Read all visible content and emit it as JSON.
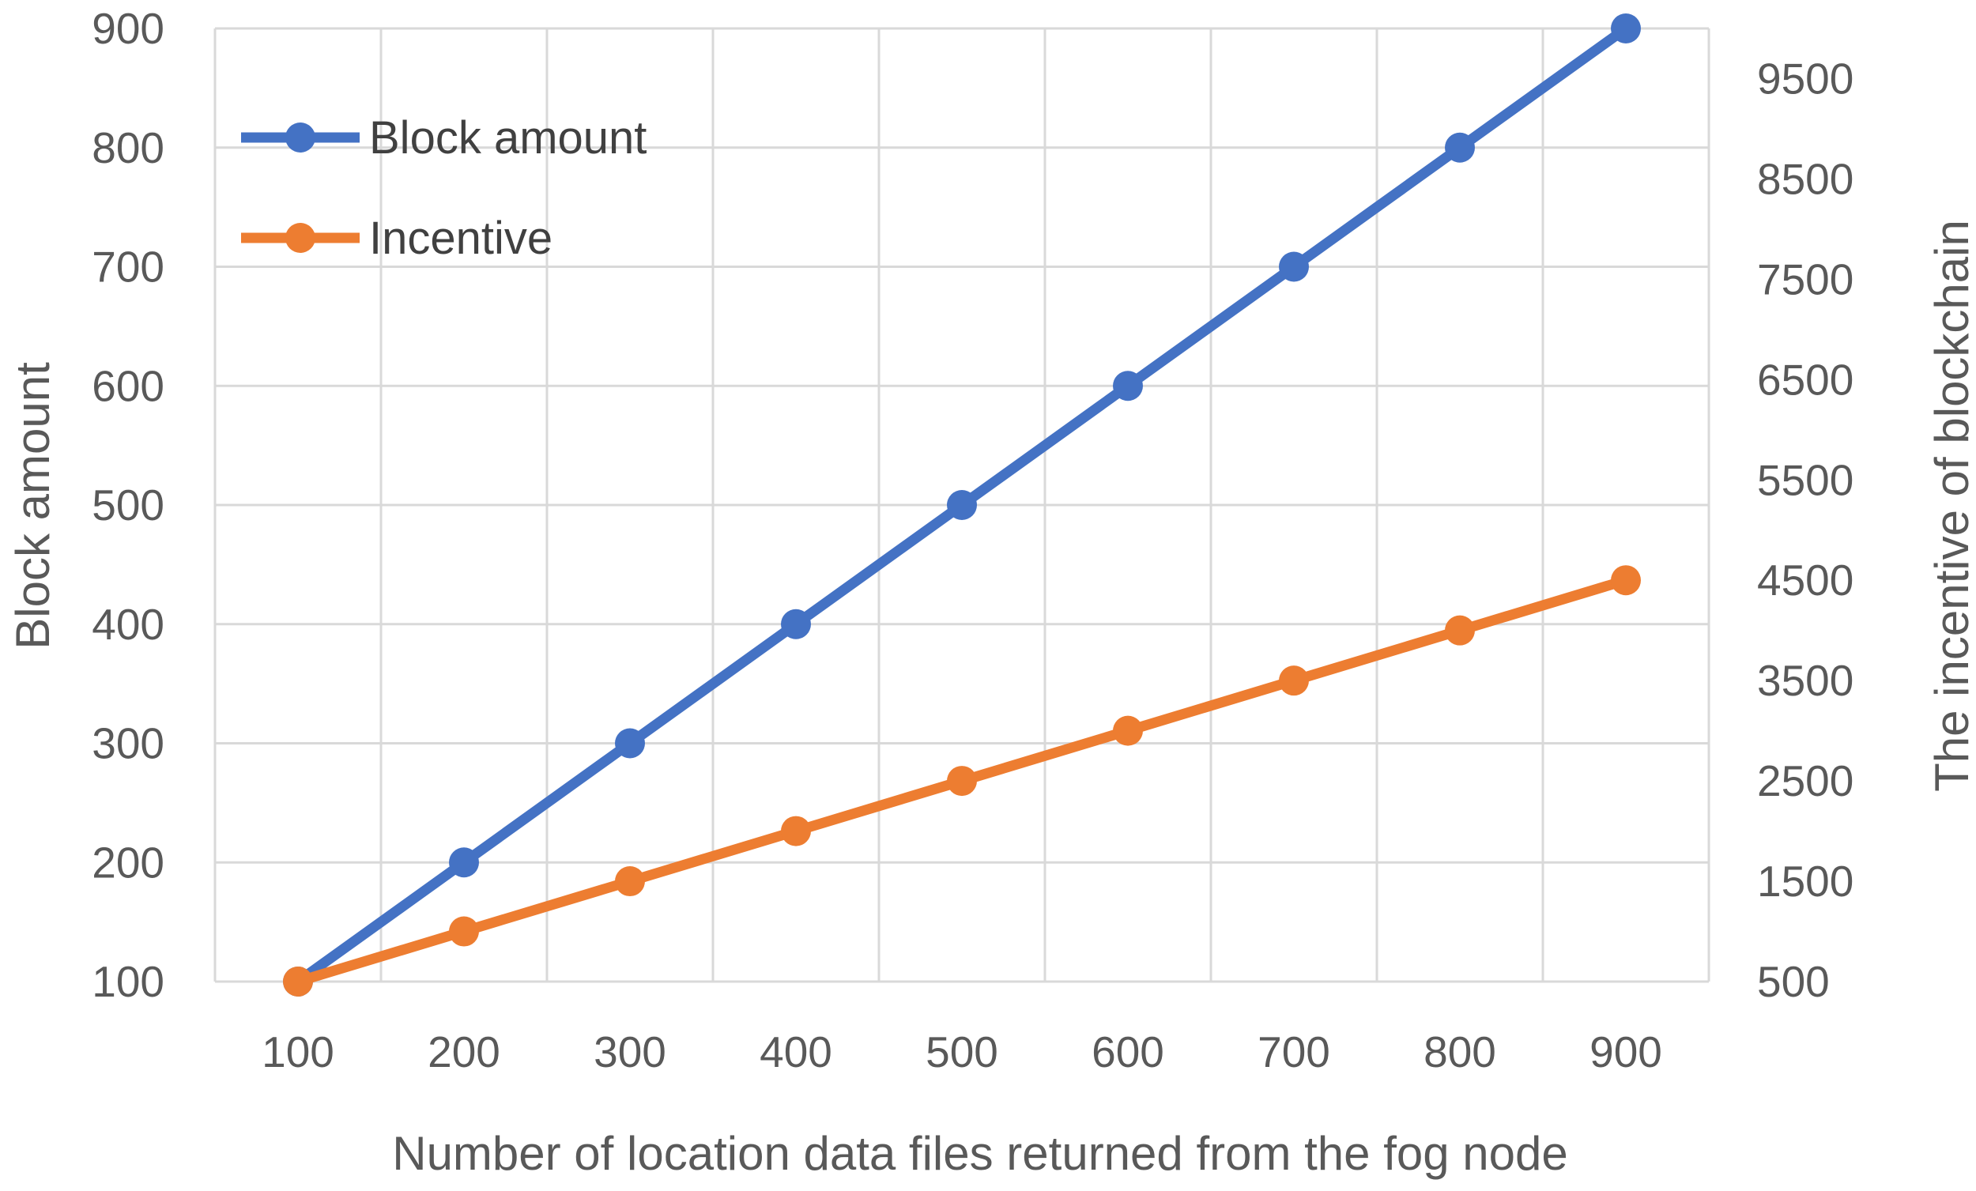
{
  "chart_data": {
    "type": "line",
    "title": "",
    "xlabel": "Number of location data files returned from the fog node",
    "ylabel": "Block amount",
    "y2label": "The incentive of blockchain",
    "x": [
      100,
      200,
      300,
      400,
      500,
      600,
      700,
      800,
      900
    ],
    "x_ticks": [
      "100",
      "200",
      "300",
      "400",
      "500",
      "600",
      "700",
      "800",
      "900"
    ],
    "ylim": [
      100,
      900
    ],
    "y_ticks": [
      "100",
      "200",
      "300",
      "400",
      "500",
      "600",
      "700",
      "800",
      "900"
    ],
    "y2lim": [
      500,
      10000
    ],
    "y2_ticks": [
      "500",
      "1500",
      "2500",
      "3500",
      "4500",
      "5500",
      "6500",
      "7500",
      "8500",
      "9500"
    ],
    "grid": true,
    "legend_position": "top-left",
    "series": [
      {
        "name": "Block amount",
        "axis": "left",
        "color": "#4472c4",
        "values": [
          100,
          200,
          300,
          400,
          500,
          600,
          700,
          800,
          900
        ]
      },
      {
        "name": "Incentive",
        "axis": "right",
        "color": "#ed7d31",
        "values": [
          500,
          1000,
          1500,
          2000,
          2500,
          3000,
          3500,
          4000,
          4500
        ]
      }
    ]
  }
}
